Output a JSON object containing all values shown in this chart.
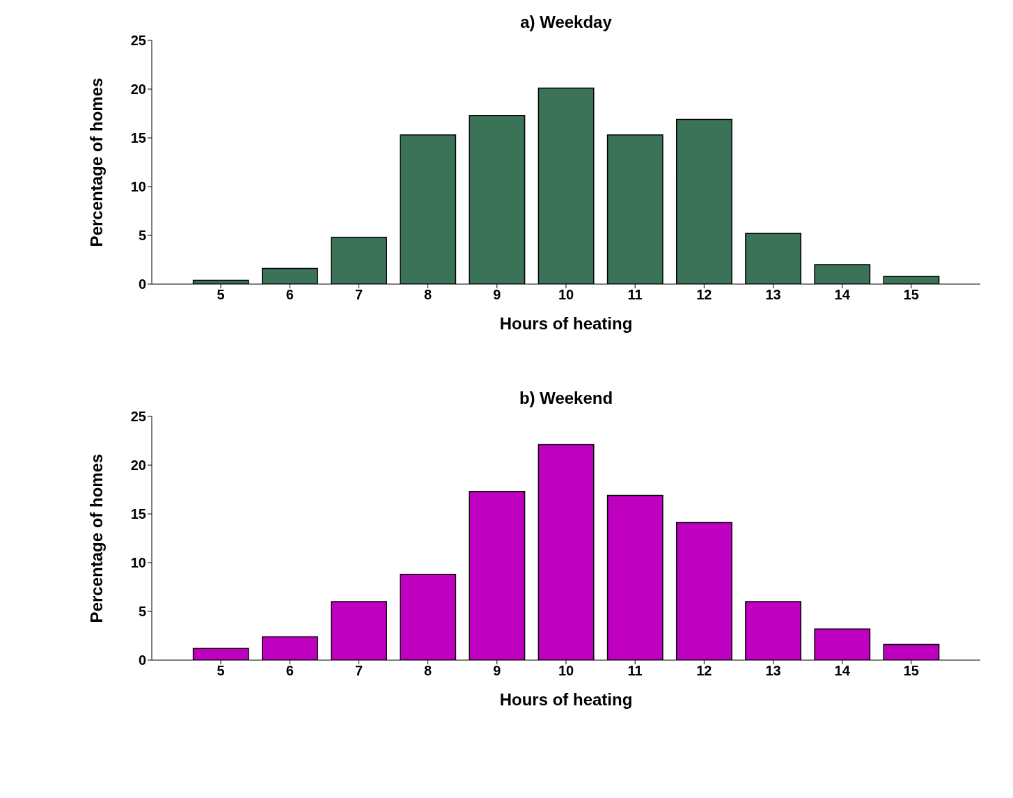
{
  "chart_data": [
    {
      "type": "bar",
      "title": "a) Weekday",
      "xlabel": "Hours of heating",
      "ylabel": "Percentage of homes",
      "x": [
        5,
        6,
        7,
        8,
        9,
        10,
        11,
        12,
        13,
        14,
        15
      ],
      "values": [
        0.4,
        1.6,
        4.8,
        15.3,
        17.3,
        20.1,
        15.3,
        16.9,
        5.2,
        2.0,
        0.8
      ],
      "color": "#3b7358",
      "xlim": [
        4,
        16
      ],
      "xticks": [
        5,
        6,
        7,
        8,
        9,
        10,
        11,
        12,
        13,
        14,
        15
      ],
      "ylim": [
        0,
        25
      ],
      "yticks": [
        0,
        5,
        10,
        15,
        20,
        25
      ],
      "grid": false
    },
    {
      "type": "bar",
      "title": "b) Weekend",
      "xlabel": "Hours of heating",
      "ylabel": "Percentage of homes",
      "x": [
        5,
        6,
        7,
        8,
        9,
        10,
        11,
        12,
        13,
        14,
        15
      ],
      "values": [
        1.2,
        2.4,
        6.0,
        8.8,
        17.3,
        22.1,
        16.9,
        14.1,
        6.0,
        3.2,
        1.6
      ],
      "color": "#c000c0",
      "xlim": [
        4,
        16
      ],
      "xticks": [
        5,
        6,
        7,
        8,
        9,
        10,
        11,
        12,
        13,
        14,
        15
      ],
      "ylim": [
        0,
        25
      ],
      "yticks": [
        0,
        5,
        10,
        15,
        20,
        25
      ],
      "grid": false
    }
  ]
}
